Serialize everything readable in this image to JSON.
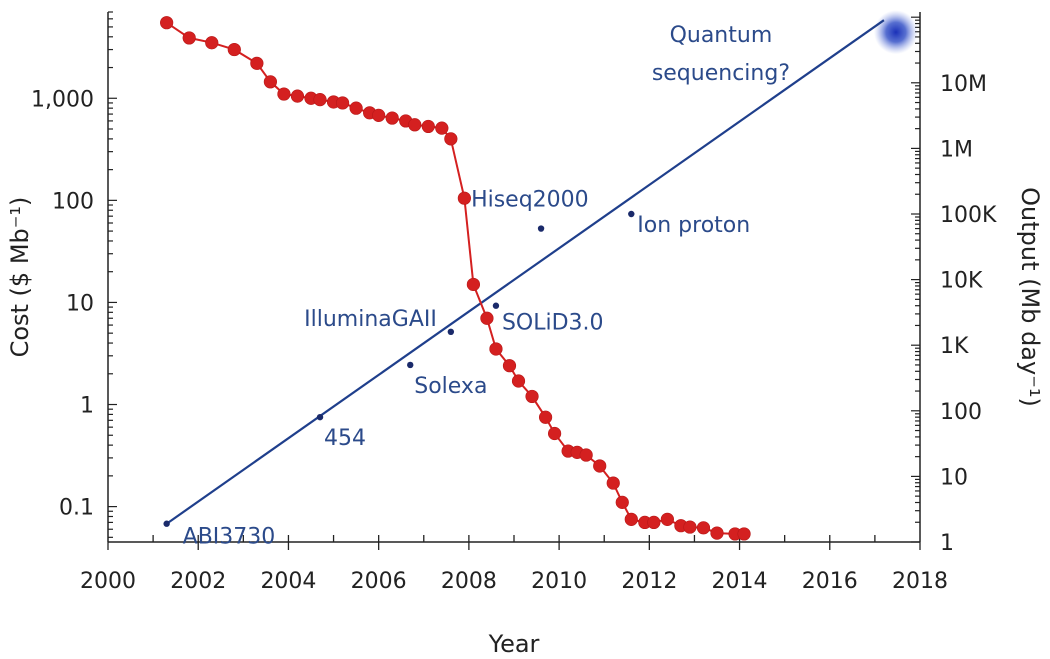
{
  "chart_data": {
    "type": "line",
    "xlabel": "Year",
    "ylabel_left": "Cost ($ Mb⁻¹)",
    "ylabel_right": "Output (Mb day⁻¹)",
    "x_ticks": [
      2000,
      2002,
      2004,
      2006,
      2008,
      2010,
      2012,
      2014,
      2016,
      2018
    ],
    "xlim": [
      2000,
      2018
    ],
    "left_axis": {
      "scale": "log",
      "ylim": [
        0.045,
        7000
      ],
      "ticks": [
        0.1,
        1,
        10,
        100,
        1000
      ],
      "tick_labels": [
        "0.1",
        "1",
        "10",
        "100",
        "1,000"
      ]
    },
    "right_axis": {
      "scale": "log",
      "ylim": [
        1,
        120000000
      ],
      "ticks": [
        1,
        10,
        100,
        1000,
        10000,
        100000,
        1000000,
        10000000
      ],
      "tick_labels": [
        "1",
        "10",
        "100",
        "1K",
        "10K",
        "100K",
        "1M",
        "10M"
      ]
    },
    "series": [
      {
        "name": "Cost per Mb",
        "axis": "left",
        "color": "#d42020",
        "x": [
          2001.3,
          2001.8,
          2002.3,
          2002.8,
          2003.3,
          2003.6,
          2003.9,
          2004.2,
          2004.5,
          2004.7,
          2005.0,
          2005.2,
          2005.5,
          2005.8,
          2006.0,
          2006.3,
          2006.6,
          2006.8,
          2007.1,
          2007.4,
          2007.6,
          2007.9,
          2008.1,
          2008.4,
          2008.6,
          2008.9,
          2009.1,
          2009.4,
          2009.7,
          2009.9,
          2010.2,
          2010.4,
          2010.6,
          2010.9,
          2011.2,
          2011.4,
          2011.6,
          2011.9,
          2012.1,
          2012.4,
          2012.7,
          2012.9,
          2013.2,
          2013.5,
          2013.9,
          2014.1
        ],
        "y": [
          5500,
          3900,
          3500,
          3000,
          2200,
          1450,
          1100,
          1050,
          1000,
          970,
          920,
          900,
          800,
          720,
          680,
          640,
          600,
          550,
          530,
          510,
          400,
          105,
          15,
          7,
          3.5,
          2.4,
          1.7,
          1.2,
          0.75,
          0.52,
          0.35,
          0.34,
          0.32,
          0.25,
          0.17,
          0.11,
          0.075,
          0.07,
          0.07,
          0.075,
          0.065,
          0.063,
          0.062,
          0.055,
          0.054,
          0.054
        ]
      },
      {
        "name": "Output per day",
        "axis": "right",
        "color": "#1f3f8c",
        "x": [
          2001.3,
          2017.2
        ],
        "y": [
          1.9,
          90000000
        ]
      }
    ],
    "annotations": [
      {
        "label": "ABI3730",
        "x": 2001.3,
        "y": 1.9
      },
      {
        "label": "454",
        "x": 2004.7,
        "y": 80
      },
      {
        "label": "Solexa",
        "x": 2006.7,
        "y": 500
      },
      {
        "label": "IlluminaGAII",
        "x": 2007.6,
        "y": 1600
      },
      {
        "label": "SOLiD3.0",
        "x": 2008.6,
        "y": 4000
      },
      {
        "label": "Hiseq2000",
        "x": 2009.6,
        "y": 60000
      },
      {
        "label": "Ion proton",
        "x": 2011.6,
        "y": 100000
      },
      {
        "label": "Quantum sequencing?",
        "x": 2017.2,
        "y": 90000000
      }
    ],
    "grid": false
  }
}
